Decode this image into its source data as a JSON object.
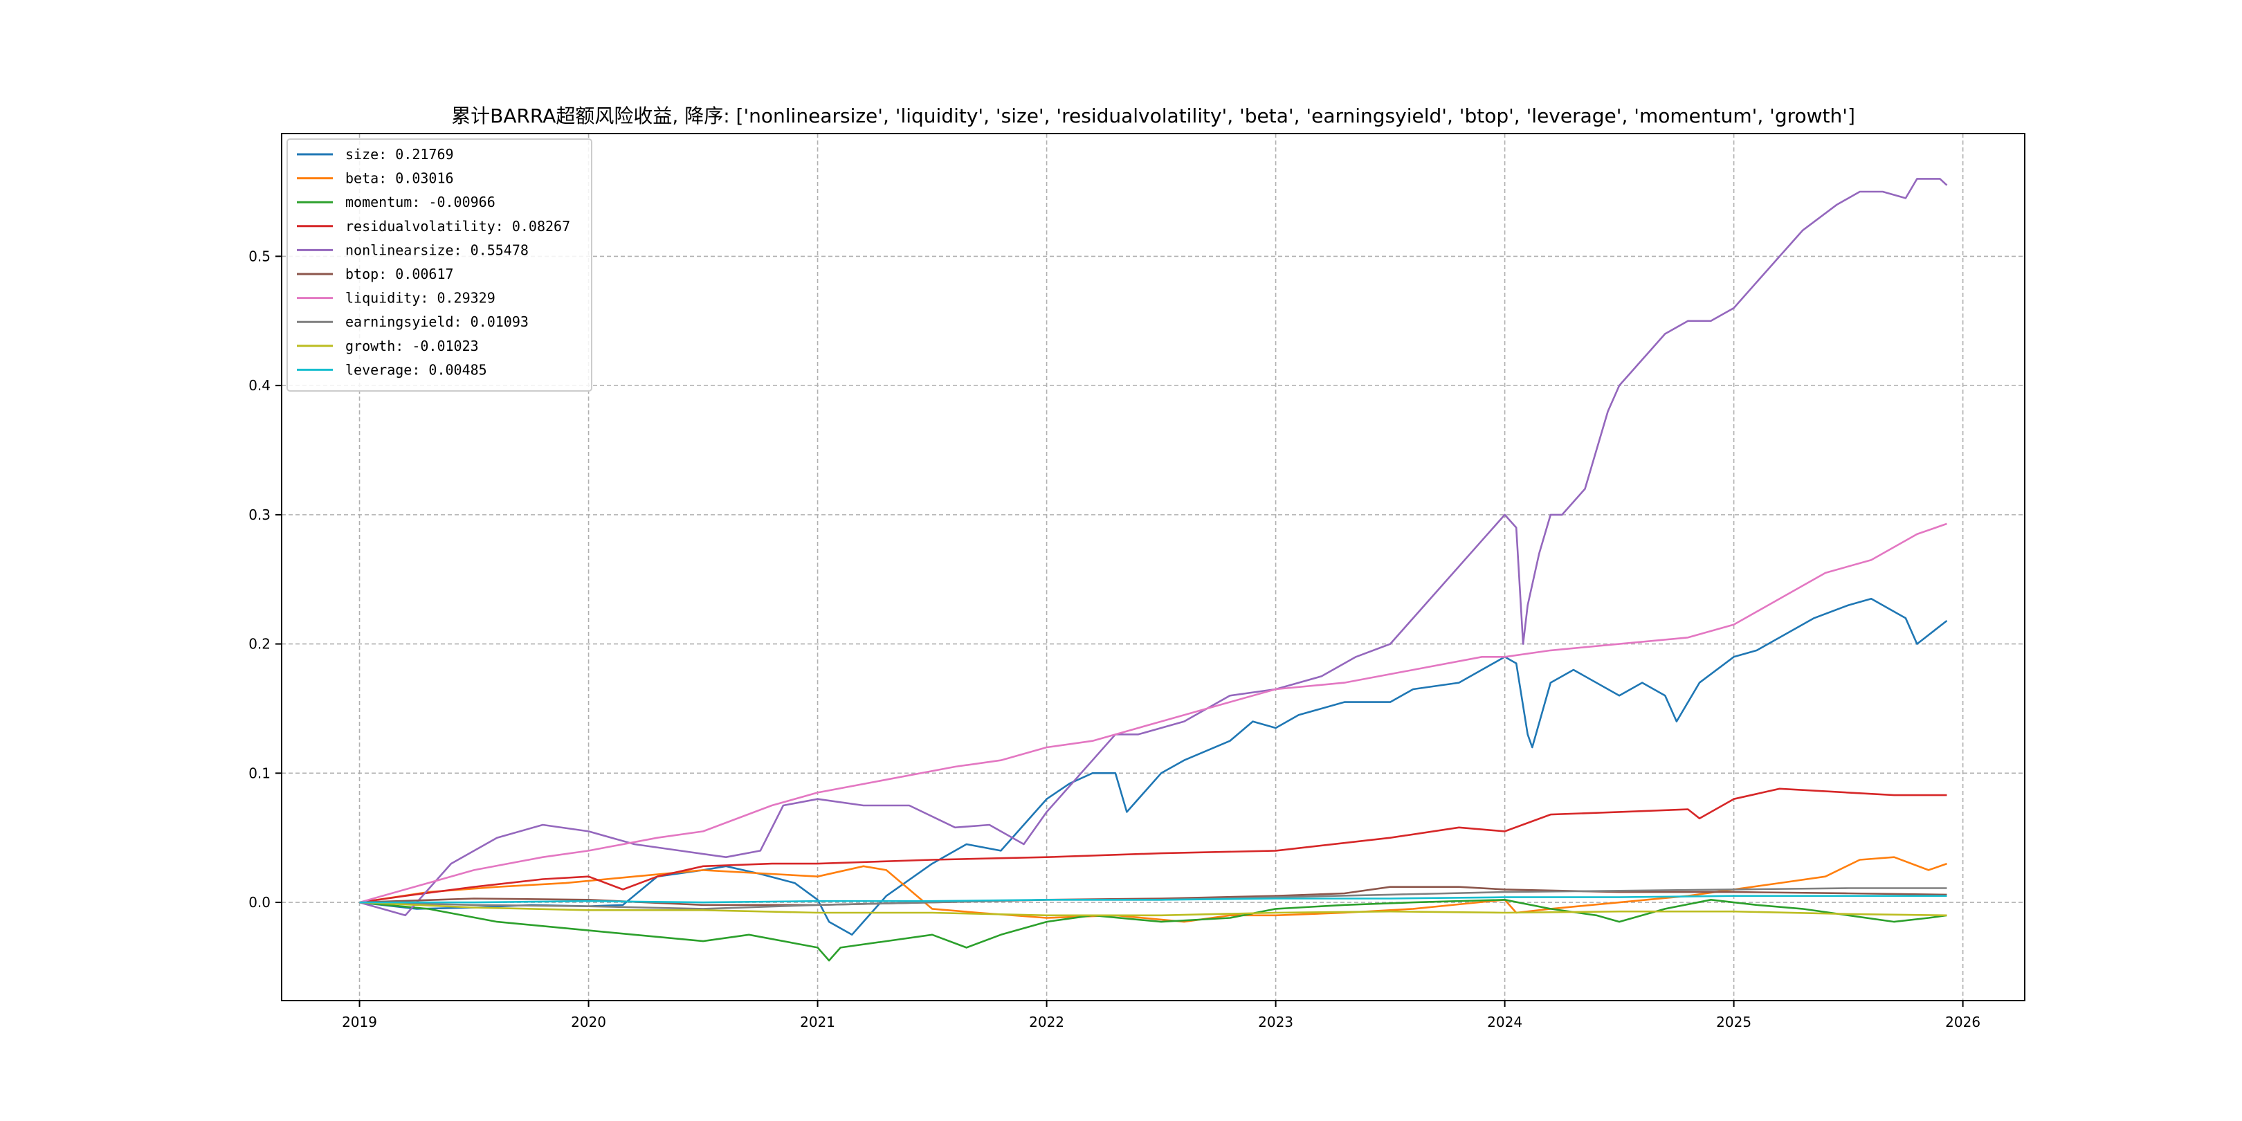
{
  "chart_data": {
    "type": "line",
    "title": "累计BARRA超额风险收益,  降序: ['nonlinearsize', 'liquidity', 'size', 'residualvolatility', 'beta', 'earningsyield', 'btop', 'leverage', 'momentum', 'growth']",
    "xlabel": "",
    "ylabel": "",
    "xlim": [
      2018.66,
      2026.27
    ],
    "ylim": [
      -0.076,
      0.595
    ],
    "x_ticks": [
      2019,
      2020,
      2021,
      2022,
      2023,
      2024,
      2025,
      2026
    ],
    "y_ticks": [
      0.0,
      0.1,
      0.2,
      0.3,
      0.4,
      0.5
    ],
    "x_tick_labels": [
      "2019",
      "2020",
      "2021",
      "2022",
      "2023",
      "2024",
      "2025",
      "2026"
    ],
    "y_tick_labels": [
      "0.0",
      "0.1",
      "0.2",
      "0.3",
      "0.4",
      "0.5"
    ],
    "grid": true,
    "legend_position": "top-left",
    "series": [
      {
        "name": "size: 0.21769",
        "color": "#1f77b4",
        "x": [
          2019.0,
          2019.25,
          2019.5,
          2019.75,
          2020.0,
          2020.15,
          2020.3,
          2020.5,
          2020.6,
          2020.75,
          2020.9,
          2021.0,
          2021.05,
          2021.15,
          2021.3,
          2021.5,
          2021.65,
          2021.8,
          2021.9,
          2022.0,
          2022.1,
          2022.2,
          2022.3,
          2022.35,
          2022.5,
          2022.6,
          2022.8,
          2022.9,
          2023.0,
          2023.1,
          2023.3,
          2023.5,
          2023.6,
          2023.8,
          2024.0,
          2024.05,
          2024.1,
          2024.12,
          2024.2,
          2024.3,
          2024.5,
          2024.6,
          2024.7,
          2024.75,
          2024.85,
          2025.0,
          2025.1,
          2025.2,
          2025.35,
          2025.5,
          2025.6,
          2025.75,
          2025.8,
          2025.93
        ],
        "y": [
          0.0,
          -0.005,
          -0.004,
          -0.002,
          -0.003,
          -0.002,
          0.02,
          0.025,
          0.028,
          0.022,
          0.015,
          0.002,
          -0.015,
          -0.025,
          0.005,
          0.03,
          0.045,
          0.04,
          0.06,
          0.08,
          0.092,
          0.1,
          0.1,
          0.07,
          0.1,
          0.11,
          0.125,
          0.14,
          0.135,
          0.145,
          0.155,
          0.155,
          0.165,
          0.17,
          0.19,
          0.185,
          0.13,
          0.12,
          0.17,
          0.18,
          0.16,
          0.17,
          0.16,
          0.14,
          0.17,
          0.19,
          0.195,
          0.205,
          0.22,
          0.23,
          0.235,
          0.22,
          0.2,
          0.218
        ]
      },
      {
        "name": "beta: 0.03016",
        "color": "#ff7f0e",
        "x": [
          2019.0,
          2019.3,
          2019.6,
          2019.9,
          2020.2,
          2020.5,
          2020.8,
          2021.0,
          2021.2,
          2021.3,
          2021.5,
          2021.7,
          2022.0,
          2022.3,
          2022.6,
          2022.8,
          2023.0,
          2023.3,
          2023.6,
          2024.0,
          2024.05,
          2024.2,
          2024.5,
          2024.8,
          2025.0,
          2025.2,
          2025.4,
          2025.55,
          2025.7,
          2025.85,
          2025.93
        ],
        "y": [
          0.0,
          0.008,
          0.012,
          0.015,
          0.02,
          0.025,
          0.022,
          0.02,
          0.028,
          0.025,
          -0.005,
          -0.008,
          -0.012,
          -0.01,
          -0.015,
          -0.01,
          -0.01,
          -0.008,
          -0.005,
          0.002,
          -0.008,
          -0.005,
          0.0,
          0.005,
          0.01,
          0.015,
          0.02,
          0.033,
          0.035,
          0.025,
          0.03
        ]
      },
      {
        "name": "momentum: -0.00966",
        "color": "#2ca02c",
        "x": [
          2019.0,
          2019.3,
          2019.6,
          2019.9,
          2020.2,
          2020.5,
          2020.7,
          2021.0,
          2021.05,
          2021.1,
          2021.3,
          2021.5,
          2021.65,
          2021.8,
          2022.0,
          2022.2,
          2022.5,
          2022.8,
          2023.0,
          2023.3,
          2023.6,
          2024.0,
          2024.2,
          2024.4,
          2024.5,
          2024.7,
          2024.9,
          2025.1,
          2025.3,
          2025.5,
          2025.7,
          2025.85,
          2025.93
        ],
        "y": [
          0.0,
          -0.005,
          -0.015,
          -0.02,
          -0.025,
          -0.03,
          -0.025,
          -0.035,
          -0.045,
          -0.035,
          -0.03,
          -0.025,
          -0.035,
          -0.025,
          -0.015,
          -0.01,
          -0.015,
          -0.012,
          -0.005,
          -0.002,
          0.0,
          0.002,
          -0.005,
          -0.01,
          -0.015,
          -0.005,
          0.002,
          -0.002,
          -0.005,
          -0.01,
          -0.015,
          -0.012,
          -0.01
        ]
      },
      {
        "name": "residualvolatility: 0.08267",
        "color": "#d62728",
        "x": [
          2019.0,
          2019.2,
          2019.5,
          2019.8,
          2020.0,
          2020.15,
          2020.3,
          2020.5,
          2020.8,
          2021.0,
          2021.5,
          2022.0,
          2022.5,
          2023.0,
          2023.5,
          2023.8,
          2024.0,
          2024.2,
          2024.5,
          2024.8,
          2024.85,
          2025.0,
          2025.2,
          2025.5,
          2025.7,
          2025.93
        ],
        "y": [
          0.0,
          0.005,
          0.012,
          0.018,
          0.02,
          0.01,
          0.02,
          0.028,
          0.03,
          0.03,
          0.033,
          0.035,
          0.038,
          0.04,
          0.05,
          0.058,
          0.055,
          0.068,
          0.07,
          0.072,
          0.065,
          0.08,
          0.088,
          0.085,
          0.083,
          0.083
        ]
      },
      {
        "name": "nonlinearsize: 0.55478",
        "color": "#9467bd",
        "x": [
          2019.0,
          2019.1,
          2019.2,
          2019.4,
          2019.6,
          2019.8,
          2020.0,
          2020.2,
          2020.4,
          2020.6,
          2020.75,
          2020.85,
          2021.0,
          2021.2,
          2021.4,
          2021.6,
          2021.75,
          2021.9,
          2022.0,
          2022.2,
          2022.3,
          2022.4,
          2022.6,
          2022.8,
          2023.0,
          2023.2,
          2023.35,
          2023.5,
          2023.7,
          2023.9,
          2024.0,
          2024.05,
          2024.08,
          2024.1,
          2024.15,
          2024.2,
          2024.25,
          2024.35,
          2024.45,
          2024.5,
          2024.6,
          2024.7,
          2024.8,
          2024.9,
          2025.0,
          2025.1,
          2025.2,
          2025.3,
          2025.45,
          2025.55,
          2025.65,
          2025.75,
          2025.8,
          2025.9,
          2025.93
        ],
        "y": [
          0.0,
          -0.005,
          -0.01,
          0.03,
          0.05,
          0.06,
          0.055,
          0.045,
          0.04,
          0.035,
          0.04,
          0.075,
          0.08,
          0.075,
          0.075,
          0.058,
          0.06,
          0.045,
          0.07,
          0.11,
          0.13,
          0.13,
          0.14,
          0.16,
          0.165,
          0.175,
          0.19,
          0.2,
          0.24,
          0.28,
          0.3,
          0.29,
          0.2,
          0.23,
          0.27,
          0.3,
          0.3,
          0.32,
          0.38,
          0.4,
          0.42,
          0.44,
          0.45,
          0.45,
          0.46,
          0.48,
          0.5,
          0.52,
          0.54,
          0.55,
          0.55,
          0.545,
          0.56,
          0.56,
          0.555
        ]
      },
      {
        "name": "btop: 0.00617",
        "color": "#8c564b",
        "x": [
          2019.0,
          2019.5,
          2020.0,
          2020.5,
          2021.0,
          2021.5,
          2022.0,
          2022.5,
          2023.0,
          2023.3,
          2023.5,
          2023.8,
          2024.0,
          2024.5,
          2025.0,
          2025.5,
          2025.93
        ],
        "y": [
          0.0,
          0.003,
          0.002,
          -0.002,
          -0.002,
          0.0,
          0.002,
          0.003,
          0.005,
          0.007,
          0.012,
          0.012,
          0.01,
          0.008,
          0.008,
          0.007,
          0.006
        ]
      },
      {
        "name": "liquidity: 0.29329",
        "color": "#e377c2",
        "x": [
          2019.0,
          2019.2,
          2019.5,
          2019.8,
          2020.0,
          2020.3,
          2020.5,
          2020.8,
          2021.0,
          2021.3,
          2021.6,
          2021.8,
          2022.0,
          2022.2,
          2022.5,
          2022.8,
          2023.0,
          2023.3,
          2023.6,
          2023.9,
          2024.0,
          2024.2,
          2024.5,
          2024.8,
          2025.0,
          2025.2,
          2025.4,
          2025.6,
          2025.8,
          2025.93
        ],
        "y": [
          0.0,
          0.01,
          0.025,
          0.035,
          0.04,
          0.05,
          0.055,
          0.075,
          0.085,
          0.095,
          0.105,
          0.11,
          0.12,
          0.125,
          0.14,
          0.155,
          0.165,
          0.17,
          0.18,
          0.19,
          0.19,
          0.195,
          0.2,
          0.205,
          0.215,
          0.235,
          0.255,
          0.265,
          0.285,
          0.293
        ]
      },
      {
        "name": "earningsyield: 0.01093",
        "color": "#7f7f7f",
        "x": [
          2019.0,
          2019.5,
          2020.0,
          2020.5,
          2021.0,
          2021.5,
          2022.0,
          2022.5,
          2023.0,
          2023.5,
          2024.0,
          2024.5,
          2025.0,
          2025.5,
          2025.93
        ],
        "y": [
          0.0,
          -0.002,
          -0.003,
          -0.005,
          -0.002,
          0.0,
          0.002,
          0.002,
          0.004,
          0.006,
          0.008,
          0.009,
          0.01,
          0.011,
          0.011
        ]
      },
      {
        "name": "growth: -0.01023",
        "color": "#bcbd22",
        "x": [
          2019.0,
          2019.5,
          2020.0,
          2020.5,
          2021.0,
          2021.5,
          2022.0,
          2022.5,
          2023.0,
          2023.5,
          2024.0,
          2024.5,
          2025.0,
          2025.5,
          2025.93
        ],
        "y": [
          0.0,
          -0.004,
          -0.006,
          -0.006,
          -0.008,
          -0.008,
          -0.01,
          -0.01,
          -0.008,
          -0.007,
          -0.008,
          -0.007,
          -0.007,
          -0.009,
          -0.01
        ]
      },
      {
        "name": "leverage: 0.00485",
        "color": "#17becf",
        "x": [
          2019.0,
          2019.5,
          2020.0,
          2020.5,
          2021.0,
          2021.5,
          2022.0,
          2022.5,
          2023.0,
          2023.5,
          2024.0,
          2024.5,
          2025.0,
          2025.5,
          2025.93
        ],
        "y": [
          0.0,
          0.0,
          0.001,
          0.0,
          0.001,
          0.001,
          0.002,
          0.002,
          0.003,
          0.003,
          0.004,
          0.004,
          0.005,
          0.005,
          0.005
        ]
      }
    ]
  }
}
